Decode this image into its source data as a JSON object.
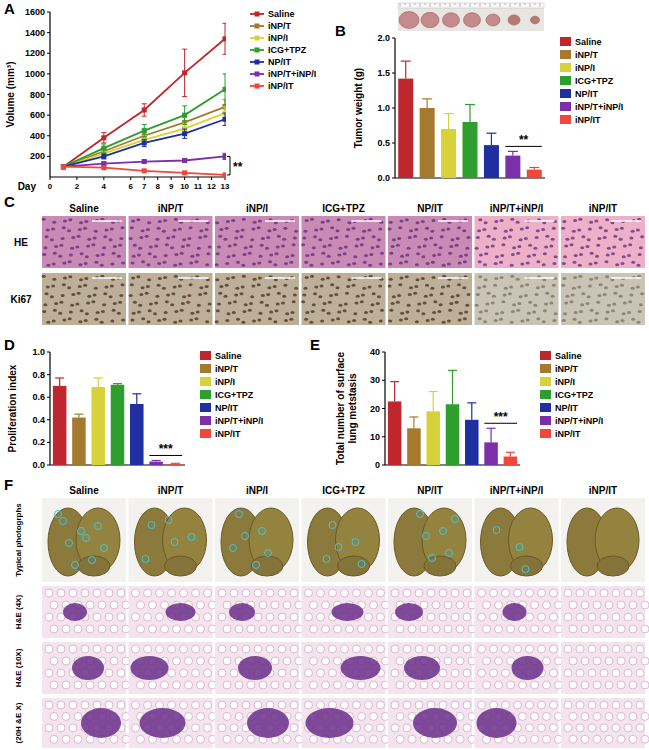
{
  "chart_data": [
    {
      "panel": "A",
      "type": "line",
      "xlabel": "Day",
      "ylabel": "Volume (mm³)",
      "x": [
        1,
        4,
        7,
        10,
        13
      ],
      "xlim": [
        0,
        13
      ],
      "xticks": [
        0,
        2,
        4,
        6,
        7,
        8,
        9,
        10,
        11,
        12,
        13
      ],
      "ylim": [
        0,
        1600
      ],
      "yticks": [
        200,
        400,
        600,
        800,
        1000,
        1200,
        1400,
        1600
      ],
      "marker": "square",
      "legend": "right",
      "annotation": "**",
      "series": [
        {
          "name": "Saline",
          "color": "#c0262d",
          "values": [
            100,
            380,
            650,
            1010,
            1340
          ],
          "errors": [
            20,
            50,
            60,
            230,
            150
          ]
        },
        {
          "name": "iNP/T",
          "color": "#a57a2e",
          "values": [
            100,
            250,
            400,
            530,
            680
          ],
          "errors": [
            15,
            30,
            40,
            50,
            70
          ]
        },
        {
          "name": "iNP/I",
          "color": "#d7d23a",
          "values": [
            100,
            230,
            360,
            470,
            620
          ],
          "errors": [
            15,
            30,
            40,
            50,
            60
          ]
        },
        {
          "name": "ICG+TPZ",
          "color": "#2e9e2e",
          "values": [
            100,
            280,
            450,
            600,
            850
          ],
          "errors": [
            15,
            40,
            60,
            90,
            150
          ]
        },
        {
          "name": "NP/IT",
          "color": "#1f2f9f",
          "values": [
            100,
            200,
            330,
            420,
            560
          ],
          "errors": [
            15,
            25,
            35,
            45,
            60
          ]
        },
        {
          "name": "iNP/T+iNP/I",
          "color": "#7b2fa8",
          "values": [
            100,
            130,
            150,
            160,
            200
          ],
          "errors": [
            10,
            15,
            15,
            20,
            30
          ]
        },
        {
          "name": "iNP/IT",
          "color": "#f0473c",
          "values": [
            100,
            90,
            60,
            40,
            20
          ],
          "errors": [
            10,
            10,
            10,
            8,
            5
          ]
        }
      ]
    },
    {
      "panel": "B",
      "type": "bar",
      "ylabel": "Tumor weight (g)",
      "categories": [
        "Saline",
        "iNP/T",
        "iNP/I",
        "ICG+TPZ",
        "NP/IT",
        "iNP/T+iNP/I",
        "iNP/IT"
      ],
      "values": [
        1.42,
        1.0,
        0.7,
        0.8,
        0.47,
        0.32,
        0.12
      ],
      "errors": [
        0.25,
        0.13,
        0.22,
        0.25,
        0.17,
        0.06,
        0.03
      ],
      "colors": [
        "#c0262d",
        "#a57a2e",
        "#d7d23a",
        "#2e9e2e",
        "#1f2f9f",
        "#7b2fa8",
        "#f0473c"
      ],
      "ylim": [
        0,
        2
      ],
      "yticks": [
        {
          "value": 0,
          "label": "0.0"
        },
        {
          "value": 0.5,
          "label": "0.5"
        },
        {
          "value": 1,
          "label": "1.0"
        },
        {
          "value": 1.5,
          "label": "1.5"
        },
        {
          "value": 2,
          "label": "2.0"
        }
      ],
      "tick_labels": "y",
      "legend": "right",
      "annotation": "**"
    },
    {
      "panel": "D",
      "type": "bar",
      "ylabel": "Proliferation index",
      "categories": [
        "Saline",
        "iNP/T",
        "iNP/I",
        "ICG+TPZ",
        "NP/IT",
        "iNP/T+iNP/I",
        "iNP/IT"
      ],
      "values": [
        0.7,
        0.42,
        0.69,
        0.71,
        0.54,
        0.03,
        0.01
      ],
      "errors": [
        0.07,
        0.03,
        0.08,
        0.01,
        0.09,
        0.01,
        0.005
      ],
      "colors": [
        "#c0262d",
        "#a57a2e",
        "#d7d23a",
        "#2e9e2e",
        "#1f2f9f",
        "#7b2fa8",
        "#f0473c"
      ],
      "ylim": [
        0,
        1
      ],
      "yticks": [
        {
          "value": 0,
          "label": "0.0"
        },
        {
          "value": 0.2,
          "label": "0.2"
        },
        {
          "value": 0.4,
          "label": "0.4"
        },
        {
          "value": 0.6,
          "label": "0.6"
        },
        {
          "value": 0.8,
          "label": "0.8"
        },
        {
          "value": 1,
          "label": "1.0"
        }
      ],
      "tick_labels": "y",
      "legend": "right",
      "annotation": "***"
    },
    {
      "panel": "E",
      "type": "bar",
      "ylabel": "Total number of surface lung metstasis",
      "categories": [
        "Saline",
        "iNP/T",
        "iNP/I",
        "ICG+TPZ",
        "NP/IT",
        "iNP/T+iNP/I",
        "iNP/IT"
      ],
      "values": [
        22.5,
        13,
        19,
        21.5,
        16,
        8,
        3
      ],
      "errors": [
        7,
        4,
        7,
        12,
        6,
        5,
        1.5
      ],
      "colors": [
        "#c0262d",
        "#a57a2e",
        "#d7d23a",
        "#2e9e2e",
        "#1f2f9f",
        "#7b2fa8",
        "#f0473c"
      ],
      "ylim": [
        0,
        40
      ],
      "yticks": [
        0,
        10,
        20,
        30,
        40
      ],
      "tick_labels": "y",
      "legend": "right",
      "annotation": "***"
    }
  ],
  "panel_c": {
    "panel": "C",
    "columns": [
      "Saline",
      "iNP/T",
      "iNP/I",
      "ICG+TPZ",
      "NP/IT",
      "iNP/T+iNP/I",
      "iNP/IT"
    ],
    "rows": [
      "HE",
      "Ki67"
    ]
  },
  "panel_f": {
    "panel": "F",
    "columns": [
      "Saline",
      "iNP/T",
      "iNP/I",
      "ICG+TPZ",
      "NP/IT",
      "iNP/T+iNP/I",
      "iNP/IT"
    ],
    "rows": [
      "Typical photogrphs",
      "H&E (4X)",
      "H&E (10X)",
      "(20H &E X)"
    ]
  }
}
